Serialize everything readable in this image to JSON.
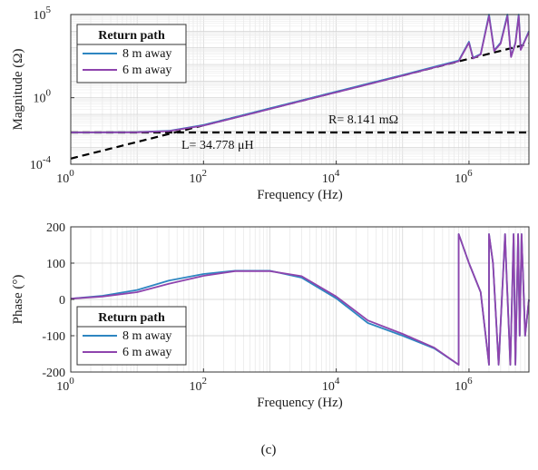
{
  "caption": "(c)",
  "chart_data": [
    {
      "type": "line",
      "xscale": "log",
      "yscale": "log",
      "xlim": [
        1,
        8000000
      ],
      "ylim": [
        0.0001,
        100000
      ],
      "grid": true,
      "xlabel": "Frequency (Hz)",
      "ylabel": "Magnitude (Ω)",
      "x_ticks": [
        {
          "base": "10",
          "exp": "0"
        },
        {
          "base": "10",
          "exp": "2"
        },
        {
          "base": "10",
          "exp": "4"
        },
        {
          "base": "10",
          "exp": "6"
        }
      ],
      "y_ticks": [
        {
          "base": "10",
          "exp": "-4"
        },
        {
          "base": "10",
          "exp": "0"
        },
        {
          "base": "10",
          "exp": "5"
        }
      ],
      "legend": {
        "title": "Return path",
        "position": "top-left"
      },
      "series": [
        {
          "name": "8 m away",
          "color": "#2E86C1",
          "points": [
            [
              1,
              0.0081
            ],
            [
              10,
              0.0084
            ],
            [
              30,
              0.0102
            ],
            [
              100,
              0.023
            ],
            [
              300,
              0.068
            ],
            [
              1000,
              0.23
            ],
            [
              3000,
              0.69
            ],
            [
              10000,
              2.3
            ],
            [
              30000,
              6.9
            ],
            [
              100000,
              23
            ],
            [
              300000,
              72
            ],
            [
              700000,
              170
            ],
            [
              1000000,
              2300
            ],
            [
              1150000,
              250
            ],
            [
              1500000,
              420
            ],
            [
              2000000,
              100000
            ],
            [
              2400000,
              700
            ],
            [
              3000000,
              2000
            ],
            [
              3800000,
              100000
            ],
            [
              4300000,
              300
            ],
            [
              5000000,
              2000
            ],
            [
              5600000,
              100000
            ],
            [
              6000000,
              800
            ],
            [
              7000000,
              3000
            ],
            [
              8000000,
              10000
            ]
          ]
        },
        {
          "name": "6 m away",
          "color": "#8E44AD",
          "points": [
            [
              1,
              0.0081
            ],
            [
              10,
              0.0083
            ],
            [
              30,
              0.0098
            ],
            [
              100,
              0.021
            ],
            [
              300,
              0.062
            ],
            [
              1000,
              0.21
            ],
            [
              3000,
              0.63
            ],
            [
              10000,
              2.1
            ],
            [
              30000,
              6.3
            ],
            [
              100000,
              21
            ],
            [
              300000,
              65
            ],
            [
              700000,
              155
            ],
            [
              1000000,
              2000
            ],
            [
              1150000,
              230
            ],
            [
              1500000,
              400
            ],
            [
              2000000,
              80000
            ],
            [
              2400000,
              650
            ],
            [
              3000000,
              1800
            ],
            [
              3800000,
              80000
            ],
            [
              4300000,
              280
            ],
            [
              5000000,
              1800
            ],
            [
              5600000,
              80000
            ],
            [
              6000000,
              750
            ],
            [
              7000000,
              2800
            ],
            [
              8000000,
              9000
            ]
          ]
        }
      ],
      "fits": [
        {
          "label": "R= 8.141 mΩ",
          "value_ohm": 0.008141,
          "kind": "resistance"
        },
        {
          "label": "L= 34.778 μH",
          "value_henry": 3.4778e-05,
          "kind": "inductance"
        }
      ]
    },
    {
      "type": "line",
      "xscale": "log",
      "xlim": [
        1,
        8000000
      ],
      "ylim": [
        -200,
        200
      ],
      "grid": true,
      "xlabel": "Frequency (Hz)",
      "ylabel": "Phase (°)",
      "x_ticks": [
        {
          "base": "10",
          "exp": "0"
        },
        {
          "base": "10",
          "exp": "2"
        },
        {
          "base": "10",
          "exp": "4"
        },
        {
          "base": "10",
          "exp": "6"
        }
      ],
      "y_ticks": [
        200,
        100,
        0,
        -100,
        -200
      ],
      "legend": {
        "title": "Return path",
        "position": "bottom-left"
      },
      "series": [
        {
          "name": "8 m away",
          "color": "#2E86C1",
          "points": [
            [
              1,
              2
            ],
            [
              3,
              10
            ],
            [
              10,
              26
            ],
            [
              30,
              52
            ],
            [
              100,
              70
            ],
            [
              300,
              79
            ],
            [
              1000,
              79
            ],
            [
              3000,
              60
            ],
            [
              10000,
              3
            ],
            [
              30000,
              -65
            ],
            [
              100000,
              -100
            ],
            [
              300000,
              -135
            ],
            [
              700000,
              -180
            ],
            [
              700000,
              180
            ],
            [
              1000000,
              100
            ],
            [
              1500000,
              20
            ],
            [
              2000000,
              -180
            ],
            [
              2000000,
              180
            ],
            [
              2300000,
              100
            ],
            [
              2800000,
              -180
            ],
            [
              3500000,
              180
            ],
            [
              3700000,
              60
            ],
            [
              4200000,
              -180
            ],
            [
              4700000,
              180
            ],
            [
              5000000,
              -180
            ],
            [
              5500000,
              180
            ],
            [
              5800000,
              -100
            ],
            [
              6200000,
              180
            ],
            [
              7000000,
              -100
            ],
            [
              8000000,
              0
            ]
          ]
        },
        {
          "name": "6 m away",
          "color": "#8E44AD",
          "points": [
            [
              1,
              2
            ],
            [
              3,
              8
            ],
            [
              10,
              20
            ],
            [
              30,
              43
            ],
            [
              100,
              65
            ],
            [
              300,
              78
            ],
            [
              1000,
              78
            ],
            [
              3000,
              64
            ],
            [
              10000,
              8
            ],
            [
              30000,
              -58
            ],
            [
              100000,
              -95
            ],
            [
              300000,
              -133
            ],
            [
              700000,
              -180
            ],
            [
              700000,
              180
            ],
            [
              1000000,
              100
            ],
            [
              1500000,
              20
            ],
            [
              2000000,
              -180
            ],
            [
              2000000,
              180
            ],
            [
              2300000,
              100
            ],
            [
              2800000,
              -180
            ],
            [
              3500000,
              180
            ],
            [
              3700000,
              60
            ],
            [
              4200000,
              -180
            ],
            [
              4700000,
              180
            ],
            [
              5000000,
              -180
            ],
            [
              5500000,
              180
            ],
            [
              5800000,
              -100
            ],
            [
              6200000,
              180
            ],
            [
              7000000,
              -100
            ],
            [
              8000000,
              0
            ]
          ]
        }
      ]
    }
  ]
}
